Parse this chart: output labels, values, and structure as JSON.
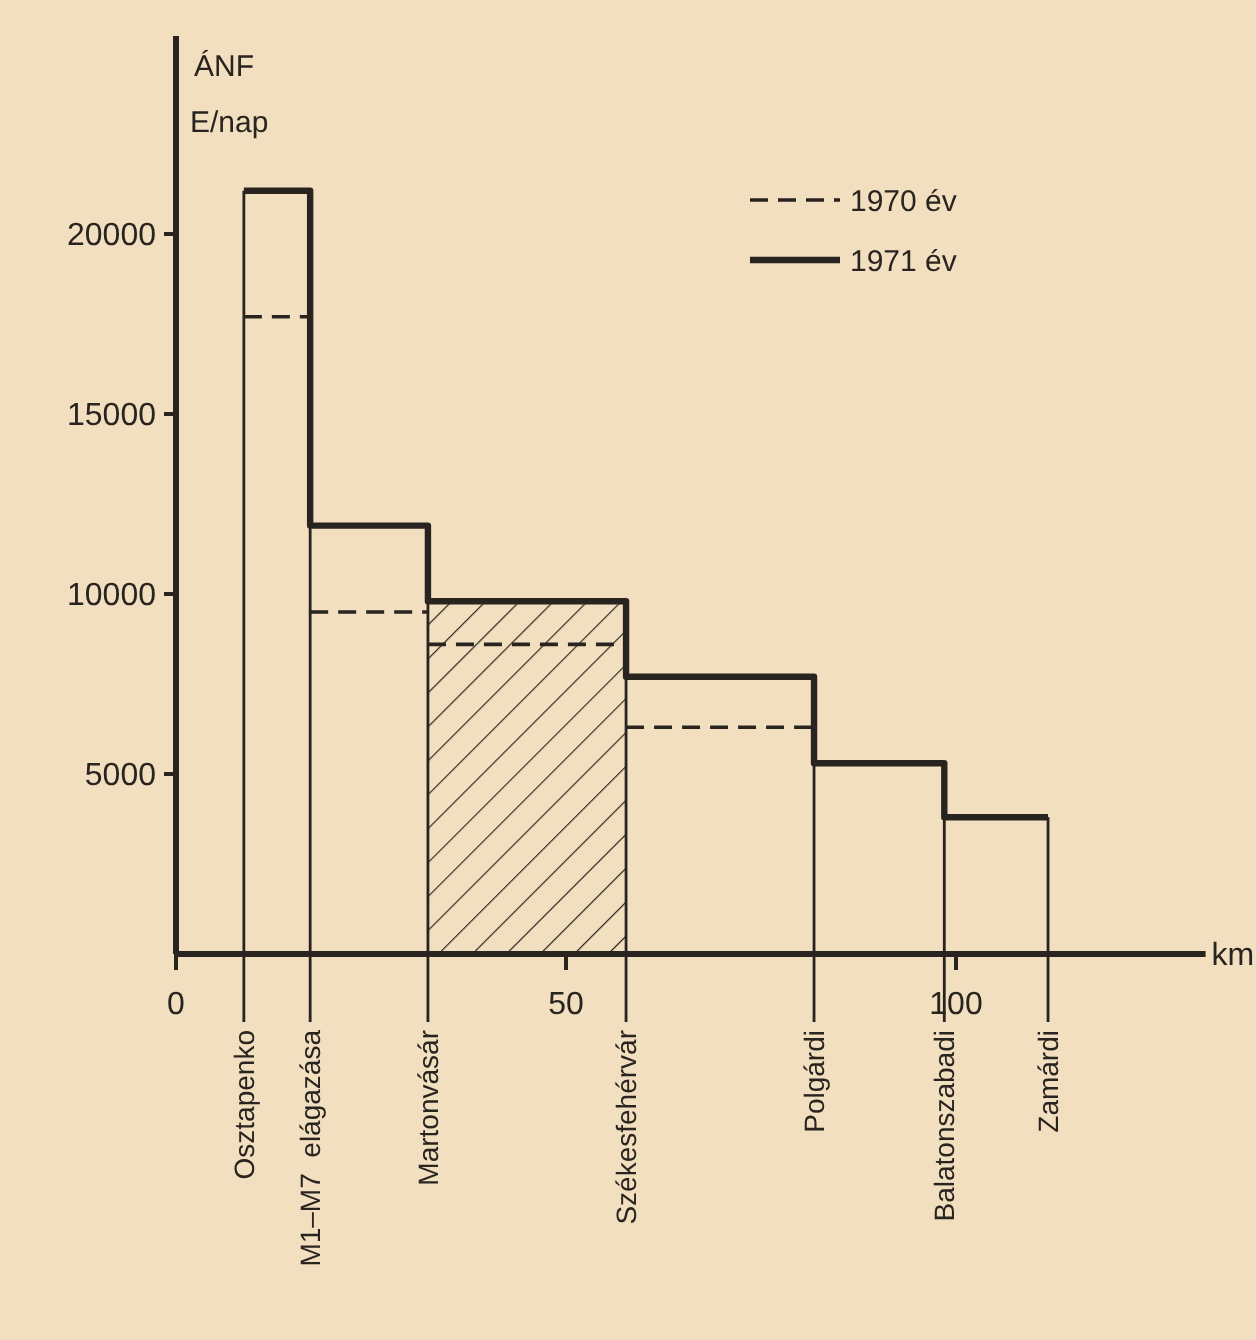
{
  "chart_data": {
    "type": "step",
    "ylabel": "ÁNF\nE/nap",
    "xlabel": "km",
    "xlim": [
      0,
      132
    ],
    "ylim": [
      0,
      25500
    ],
    "xticks": [
      0,
      50,
      100
    ],
    "ref_lines": [
      {
        "axis": "x",
        "value": 8.7,
        "label": "Osztapenko"
      },
      {
        "axis": "x",
        "value": 17.2,
        "label": "M1–M7  elágazása"
      },
      {
        "axis": "x",
        "value": 32.3,
        "label": "Martonvásár"
      },
      {
        "axis": "x",
        "value": 57.7,
        "label": "Székesfehérvár"
      },
      {
        "axis": "x",
        "value": 81.8,
        "label": "Polgárdi"
      },
      {
        "axis": "x",
        "value": 98.5,
        "label": "Balatonszabadi"
      },
      {
        "axis": "x",
        "value": 111.8,
        "label": "Zamárdi"
      }
    ],
    "yticks": [
      5000,
      10000,
      15000,
      20000
    ],
    "grid": false,
    "legend": "top right",
    "bands": [
      {
        "axis": "x",
        "from": 32.3,
        "to": 57.7,
        "color": "#2a2420"
      }
    ],
    "series": [
      {
        "name": "1970 év",
        "color": "#2a2420",
        "line_style": "dashed",
        "x": [
          8.7,
          17.2,
          32.3,
          57.7,
          81.8
        ],
        "values": [
          17700,
          9500,
          8600,
          6300,
          6300
        ]
      },
      {
        "name": "1971 év",
        "color": "#2a2420",
        "line_style": "solid",
        "x": [
          8.7,
          17.2,
          32.3,
          57.7,
          81.8,
          98.5,
          111.8
        ],
        "values": [
          21200,
          11900,
          9800,
          7700,
          5300,
          3800,
          3800
        ]
      }
    ]
  }
}
